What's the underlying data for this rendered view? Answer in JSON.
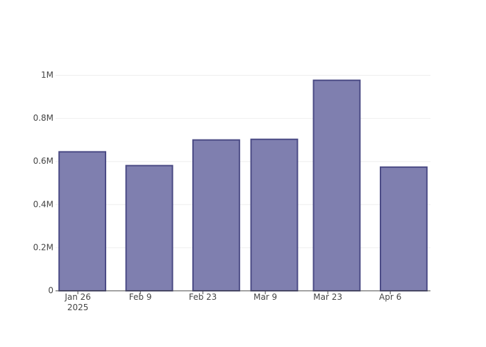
{
  "chart_data": {
    "type": "bar",
    "x": [
      "2025-01-27",
      "2025-02-11",
      "2025-02-26",
      "2025-03-11",
      "2025-03-25",
      "2025-04-09"
    ],
    "values": [
      645000,
      581000,
      700000,
      703000,
      977000,
      574000
    ],
    "color": "#7f7faf",
    "edge_color": "#4b4b85",
    "xlim": [
      "2025-01-21",
      "2025-04-15"
    ],
    "xticks": [
      {
        "value": "2025-01-26",
        "label": "Jan 26\n2025"
      },
      {
        "value": "2025-02-09",
        "label": "Feb 9"
      },
      {
        "value": "2025-02-23",
        "label": "Feb 23"
      },
      {
        "value": "2025-03-09",
        "label": "Mar 9"
      },
      {
        "value": "2025-03-23",
        "label": "Mar 23"
      },
      {
        "value": "2025-04-06",
        "label": "Apr 6"
      }
    ],
    "ylim": [
      0,
      1050000
    ],
    "yticks": [
      0,
      {
        "value": 200000,
        "label": "0.2M"
      },
      {
        "value": 400000,
        "label": "0.4M"
      },
      {
        "value": 600000,
        "label": "0.6M"
      },
      {
        "value": 800000,
        "label": "0.8M"
      },
      {
        "value": 1000000,
        "label": "1M"
      }
    ],
    "grid": true
  }
}
